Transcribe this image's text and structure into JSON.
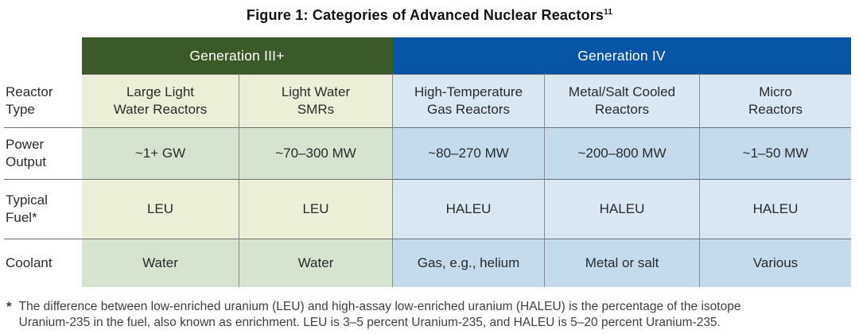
{
  "title": {
    "text": "Figure 1: Categories of Advanced Nuclear Reactors",
    "superscript": "11"
  },
  "colors": {
    "gen3_header_bg": "#3b5a27",
    "gen4_header_bg": "#0854a6",
    "gen3_cell_light": "#ebefd8",
    "gen3_cell_dark": "#d6e3cf",
    "gen4_cell_light": "#d9e7f2",
    "gen4_cell_dark": "#c5daeb",
    "header_text": "#ffffff",
    "body_text": "#2b2b2b"
  },
  "table": {
    "generation_headers": [
      {
        "label": "Generation III+",
        "columns_spanned": 2
      },
      {
        "label": "Generation IV",
        "columns_spanned": 3
      }
    ],
    "rows": [
      {
        "label": "Reactor\nType",
        "cells": [
          "Large Light\nWater Reactors",
          "Light Water\nSMRs",
          "High-Temperature\nGas Reactors",
          "Metal/Salt Cooled\nReactors",
          "Micro\nReactors"
        ]
      },
      {
        "label": "Power\nOutput",
        "cells": [
          "~1+ GW",
          "~70–300 MW",
          "~80–270 MW",
          "~200–800 MW",
          "~1–50 MW"
        ]
      },
      {
        "label": "Typical\nFuel*",
        "cells": [
          "LEU",
          "LEU",
          "HALEU",
          "HALEU",
          "HALEU"
        ]
      },
      {
        "label": "Coolant",
        "cells": [
          "Water",
          "Water",
          "Gas, e.g., helium",
          "Metal or salt",
          "Various"
        ]
      }
    ]
  },
  "footnote": {
    "marker": "*",
    "line1": "The difference between low-enriched uranium (LEU) and high-assay low-enriched uranium (HALEU) is the percentage of the isotope",
    "line2": "Uranium-235 in the fuel, also known as enrichment. LEU is 3–5 percent Uranium-235, and HALEU is 5–20 percent Uranium-235."
  }
}
